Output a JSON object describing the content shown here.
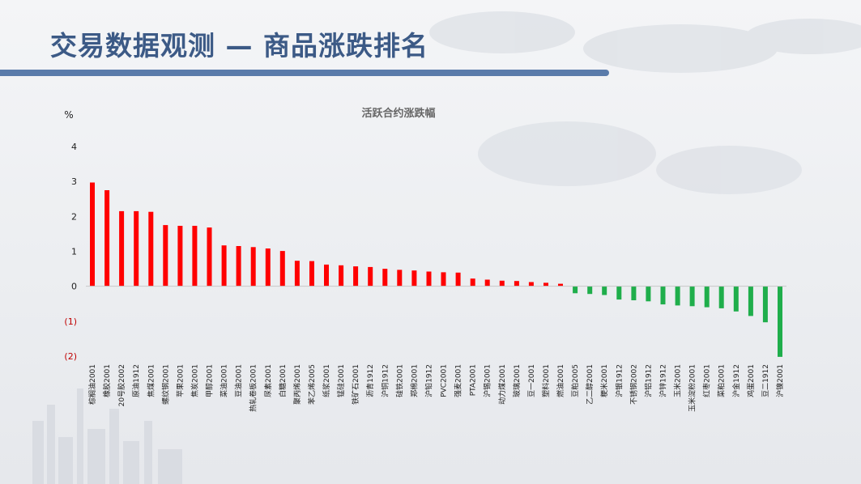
{
  "page": {
    "title": "交易数据观测 — 商品涨跌排名"
  },
  "colors": {
    "title": "#3c5a86",
    "title_bar": "#5a7baa",
    "positive": "#ff0000",
    "negative": "#1fae4b",
    "negative_tick_label": "#c00000"
  },
  "chart_data": {
    "type": "bar",
    "title": "活跃合约涨跌幅",
    "ylabel": "%",
    "ylim": [
      -2,
      4
    ],
    "yticks": [
      {
        "value": 4,
        "label": "4"
      },
      {
        "value": 3,
        "label": "3"
      },
      {
        "value": 2,
        "label": "2"
      },
      {
        "value": 1,
        "label": "1"
      },
      {
        "value": 0,
        "label": "0"
      },
      {
        "value": -1,
        "label": "(1)"
      },
      {
        "value": -2,
        "label": "(2)"
      }
    ],
    "grid": false,
    "categories": [
      "棕榈油2001",
      "橡胶2001",
      "20号胶2002",
      "原油1912",
      "焦煤2001",
      "螺纹钢2001",
      "苹果2001",
      "焦炭2001",
      "甲醇2001",
      "菜油2001",
      "豆油2001",
      "热轧卷板2001",
      "尿素2001",
      "白糖2001",
      "聚丙烯2001",
      "苯乙烯2005",
      "纸浆2001",
      "锰硅2001",
      "铁矿石2001",
      "沥青1912",
      "沪铜1912",
      "硅铁2001",
      "郑棉2001",
      "沪铅1912",
      "PVC2001",
      "强麦2001",
      "PTA2001",
      "沪锡2001",
      "动力煤2001",
      "玻璃2001",
      "豆一2001",
      "塑料2001",
      "燃油2001",
      "豆粕2005",
      "乙二醇2001",
      "粳米2001",
      "沪银1912",
      "不锈钢2002",
      "沪铝1912",
      "沪锌1912",
      "玉米2001",
      "玉米淀粉2001",
      "红枣2001",
      "菜粕2001",
      "沪金1912",
      "鸡蛋2001",
      "豆二1912",
      "沪镍2001"
    ],
    "values": [
      2.97,
      2.75,
      2.15,
      2.15,
      2.13,
      1.75,
      1.73,
      1.73,
      1.68,
      1.17,
      1.15,
      1.12,
      1.08,
      1.01,
      0.73,
      0.72,
      0.62,
      0.6,
      0.57,
      0.55,
      0.5,
      0.47,
      0.45,
      0.42,
      0.4,
      0.39,
      0.22,
      0.19,
      0.16,
      0.15,
      0.12,
      0.1,
      0.07,
      -0.2,
      -0.22,
      -0.25,
      -0.38,
      -0.4,
      -0.43,
      -0.52,
      -0.55,
      -0.57,
      -0.6,
      -0.63,
      -0.72,
      -0.85,
      -1.03,
      -2.02
    ]
  }
}
